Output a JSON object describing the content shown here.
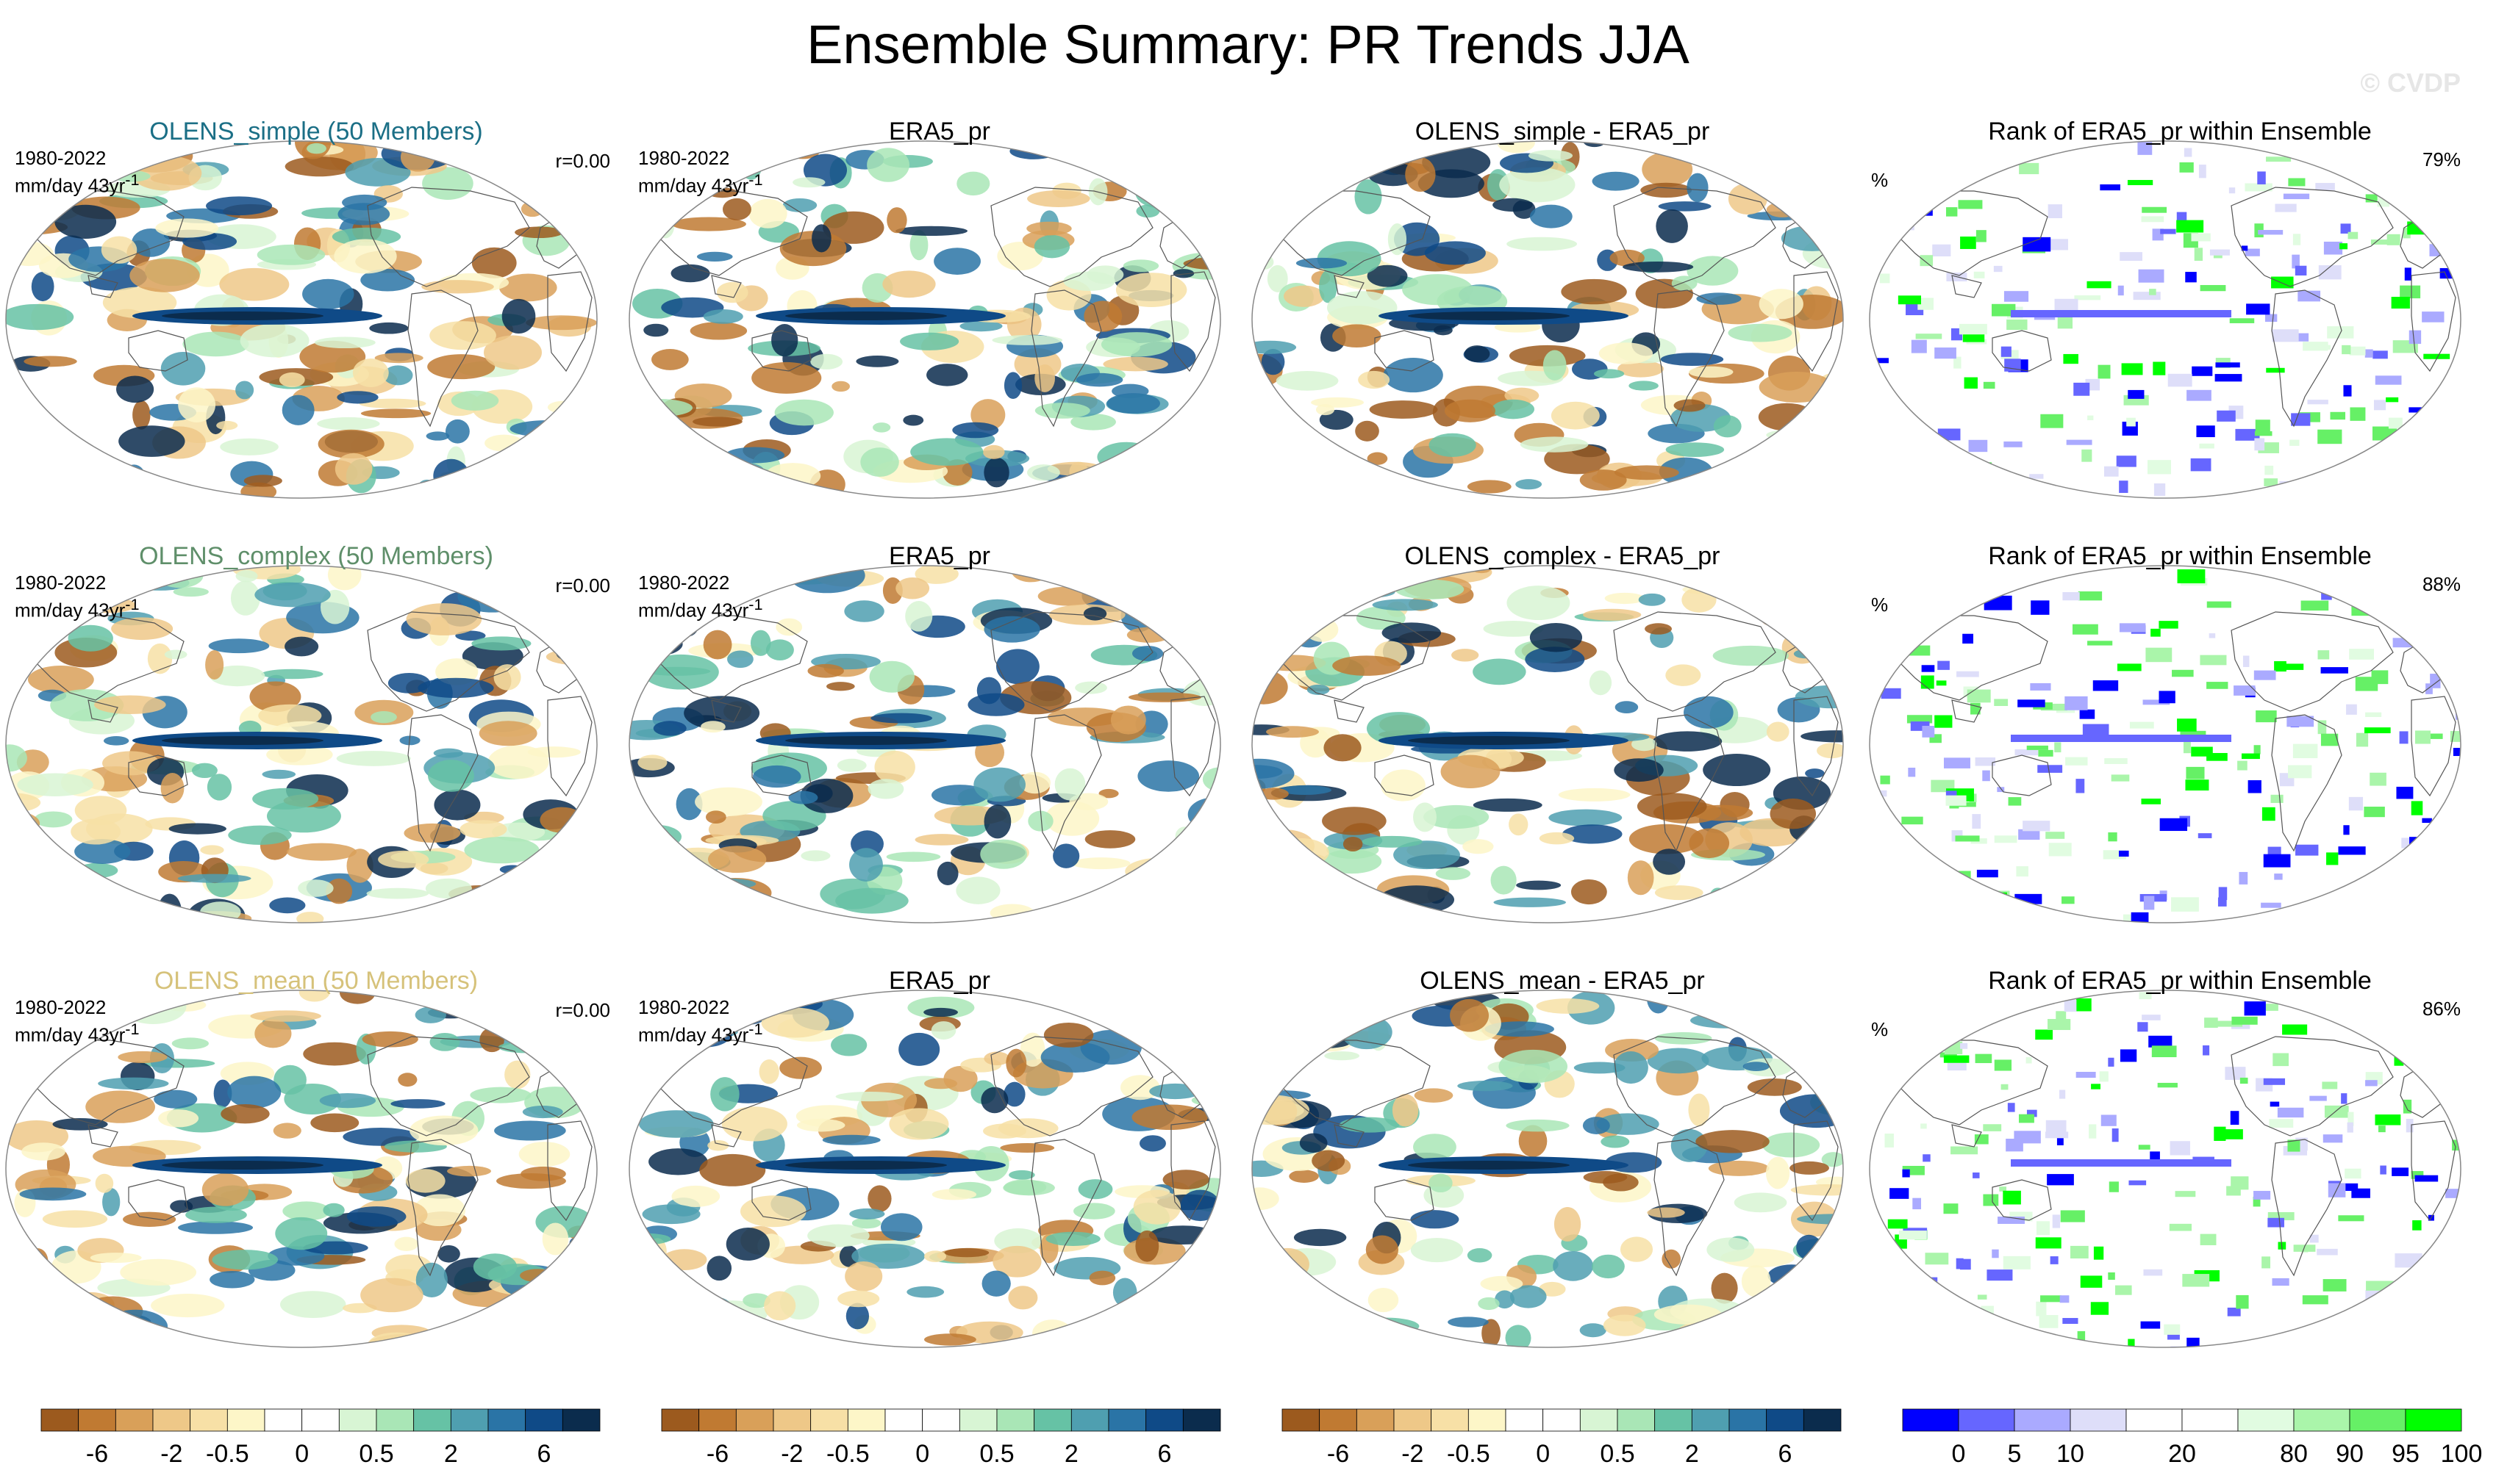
{
  "title": "Ensemble Summary: PR Trends JJA",
  "watermark": "© CVDP",
  "info": {
    "period": "1980-2022",
    "units": "mm/day 43yr",
    "units_sup": "-1"
  },
  "colors": {
    "trend": [
      "#9c5a1e",
      "#c07a32",
      "#d9a059",
      "#eec888",
      "#f7e0a6",
      "#fdf6c8",
      "#ffffff",
      "#ffffff",
      "#d8f5d4",
      "#a9e6b6",
      "#66c2a5",
      "#4f9fb0",
      "#2a74a6",
      "#0f4a87",
      "#0b2c4d"
    ],
    "rank": [
      "#0000ff",
      "#6666ff",
      "#aaaaff",
      "#dedef9",
      "#ffffff",
      "#ffffff",
      "#e1fce1",
      "#aaf5aa",
      "#66f066",
      "#00ff00"
    ]
  },
  "rows": [
    {
      "model_title": "OLENS_simple (50 Members)",
      "r_value": "r=0.00",
      "obs_title": "ERA5_pr",
      "diff_title": "OLENS_simple - ERA5_pr",
      "rank_title": "Rank of ERA5_pr within Ensemble",
      "rank_pct": "79%",
      "pct_symbol": "%"
    },
    {
      "model_title": "OLENS_complex (50 Members)",
      "r_value": "r=0.00",
      "obs_title": "ERA5_pr",
      "diff_title": "OLENS_complex - ERA5_pr",
      "rank_title": "Rank of ERA5_pr within Ensemble",
      "rank_pct": "88%",
      "pct_symbol": "%"
    },
    {
      "model_title": "OLENS_mean (50 Members)",
      "r_value": "r=0.00",
      "obs_title": "ERA5_pr",
      "diff_title": "OLENS_mean - ERA5_pr",
      "rank_title": "Rank of ERA5_pr within Ensemble",
      "rank_pct": "86%",
      "pct_symbol": "%"
    }
  ],
  "colorbars": {
    "trend_labels": [
      "-6",
      "-2",
      "-0.5",
      "0",
      "0.5",
      "2",
      "6"
    ],
    "rank_labels": [
      "0",
      "5",
      "10",
      "20",
      "80",
      "90",
      "95",
      "100"
    ]
  }
}
